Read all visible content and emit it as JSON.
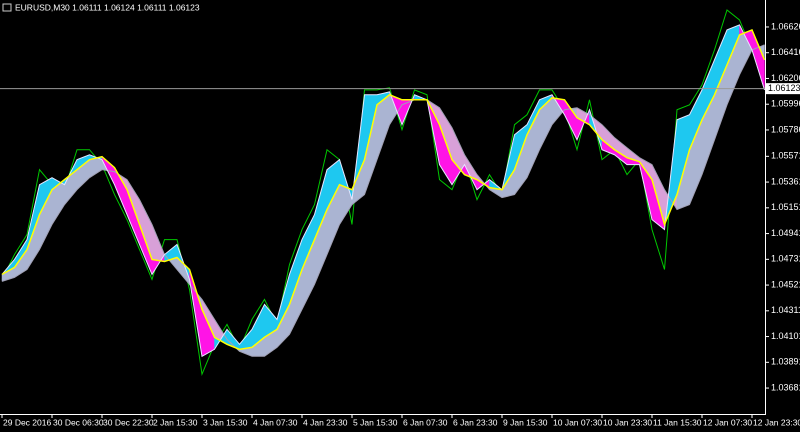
{
  "chart_data": {
    "type": "line",
    "title": "EURUSD,M30  1.06111 1.06124 1.06111 1.06123",
    "current_price": 1.06123,
    "current_price_label": "1.06123",
    "ylim": [
      1.03502,
      1.06846
    ],
    "yticks": [
      1.06626,
      1.06416,
      1.06206,
      1.05996,
      1.05786,
      1.05571,
      1.05361,
      1.05151,
      1.04941,
      1.04731,
      1.04521,
      1.04311,
      1.04101,
      1.03891,
      1.03681
    ],
    "band_colors": {
      "up": "#1ec8f0",
      "down": "#ff14e6",
      "slow_up": "#aab4d2",
      "slow_down": "#d8a0d8"
    },
    "categories": [
      "29 Dec 2016",
      null,
      null,
      null,
      "30 Dec 06:30",
      null,
      null,
      null,
      "30 Dec 22:30",
      null,
      null,
      null,
      "2 Jan 15:30",
      null,
      null,
      null,
      "3 Jan 15:30",
      null,
      null,
      null,
      "4 Jan 07:30",
      null,
      null,
      null,
      "4 Jan 23:30",
      null,
      null,
      null,
      "5 Jan 15:30",
      null,
      null,
      null,
      "6 Jan 07:30",
      null,
      null,
      null,
      "6 Jan 23:30",
      null,
      null,
      null,
      "9 Jan 15:30",
      null,
      null,
      null,
      "10 Jan 07:30",
      null,
      null,
      null,
      "10 Jan 23:30",
      null,
      null,
      null,
      "11 Jan 15:30",
      null,
      null,
      null,
      "12 Jan 07:30",
      null,
      null,
      null,
      "12 Jan 23:30",
      null
    ],
    "series": [
      {
        "color": "#00c800",
        "values": [
          1.04567,
          1.0477,
          1.04933,
          1.05462,
          1.0534,
          1.05299,
          1.05625,
          1.05625,
          1.05503,
          1.05259,
          1.05055,
          1.04811,
          1.04567,
          1.04892,
          1.04892,
          1.04485,
          1.03794,
          1.04038,
          1.042,
          1.03997,
          1.04241,
          1.04404,
          1.042,
          1.04689,
          1.04974,
          1.05177,
          1.05625,
          1.05544,
          1.05015,
          1.06113,
          1.06113,
          1.0613,
          1.05788,
          1.06113,
          1.06073,
          1.05381,
          1.05299,
          1.05544,
          1.05218,
          1.05422,
          1.05259,
          1.05829,
          1.0591,
          1.06113,
          1.06113,
          1.05951,
          1.05625,
          1.06032,
          1.05544,
          1.05625,
          1.05422,
          1.05544,
          1.04974,
          1.04648,
          1.05951,
          1.05991,
          1.06154,
          1.06439,
          1.06765,
          1.06683,
          1.06439,
          1.0613
        ]
      },
      {
        "color": "#e6e6ff",
        "values": [
          1.04608,
          1.0473,
          1.04892,
          1.0534,
          1.05397,
          1.0534,
          1.05544,
          1.05584,
          1.05544,
          1.0534,
          1.05096,
          1.04852,
          1.04608,
          1.0477,
          1.04852,
          1.04567,
          1.0394,
          1.03997,
          1.0416,
          1.04038,
          1.0416,
          1.04363,
          1.04241,
          1.04608,
          1.04892,
          1.05096,
          1.05462,
          1.05544,
          1.05218,
          1.06073,
          1.06073,
          1.06097,
          1.05829,
          1.06073,
          1.06032,
          1.05503,
          1.0534,
          1.05503,
          1.05299,
          1.05381,
          1.05299,
          1.05747,
          1.05829,
          1.06032,
          1.06073,
          1.0591,
          1.05706,
          1.05951,
          1.05625,
          1.05584,
          1.05503,
          1.05503,
          1.05055,
          1.04974,
          1.05869,
          1.0591,
          1.06113,
          1.06358,
          1.06602,
          1.06643,
          1.06439,
          1.06113
        ]
      },
      {
        "color": "#ffff00",
        "values": [
          1.04608,
          1.04665,
          1.04811,
          1.05096,
          1.05299,
          1.05381,
          1.05462,
          1.05544,
          1.05568,
          1.05479,
          1.05299,
          1.05015,
          1.0473,
          1.04713,
          1.04746,
          1.04648,
          1.04323,
          1.04095,
          1.04038,
          1.03997,
          1.04013,
          1.04095,
          1.0416,
          1.04363,
          1.04648,
          1.04892,
          1.05137,
          1.0534,
          1.05299,
          1.05544,
          1.05991,
          1.06073,
          1.06032,
          1.06032,
          1.06032,
          1.05829,
          1.05544,
          1.05422,
          1.05381,
          1.05316,
          1.05299,
          1.05462,
          1.05747,
          1.05951,
          1.06048,
          1.06032,
          1.05886,
          1.05829,
          1.05706,
          1.05625,
          1.0556,
          1.05527,
          1.05381,
          1.05015,
          1.05259,
          1.05625,
          1.05869,
          1.06073,
          1.06317,
          1.06561,
          1.06602,
          1.06358
        ]
      },
      {
        "color": "#a0a0b4",
        "values": [
          1.04551,
          1.04583,
          1.04648,
          1.04811,
          1.05015,
          1.05177,
          1.05299,
          1.05397,
          1.05462,
          1.05446,
          1.05381,
          1.05218,
          1.05015,
          1.0477,
          1.04648,
          1.04526,
          1.04404,
          1.04241,
          1.04078,
          1.03981,
          1.0394,
          1.0394,
          1.04013,
          1.04119,
          1.04323,
          1.04526,
          1.0477,
          1.05015,
          1.05177,
          1.05259,
          1.05544,
          1.05829,
          1.05991,
          1.06032,
          1.06032,
          1.05967,
          1.05804,
          1.05584,
          1.05422,
          1.05299,
          1.05234,
          1.05259,
          1.05397,
          1.05625,
          1.05829,
          1.05951,
          1.05967,
          1.0591,
          1.05829,
          1.05723,
          1.05641,
          1.0556,
          1.05503,
          1.05299,
          1.05137,
          1.05177,
          1.05422,
          1.05706,
          1.05991,
          1.06236,
          1.06439,
          1.0648
        ]
      }
    ]
  }
}
